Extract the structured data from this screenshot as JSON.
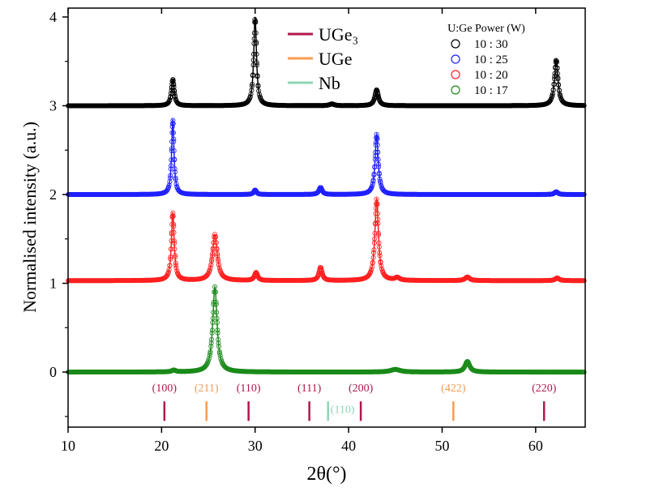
{
  "chart_data": {
    "type": "line",
    "xlabel": "2θ(°)",
    "ylabel": "Normalised intensity (a.u.)",
    "xlim": [
      10,
      65.3
    ],
    "ylim": [
      -0.62,
      4.1
    ],
    "xticks": [
      10,
      20,
      30,
      40,
      50,
      60
    ],
    "yticks": [
      0,
      1,
      2,
      3,
      4
    ],
    "grid": false,
    "marker": "open-circle",
    "legend_title": "U:Ge Power (W)",
    "legend_placement": "top-right",
    "series": [
      {
        "name": "10 : 30",
        "color": "#000000",
        "baseline": 3.0,
        "peaks": [
          [
            21.2,
            0.3,
            0.35
          ],
          [
            30.0,
            1.0,
            0.35
          ],
          [
            38.2,
            0.02,
            0.6
          ],
          [
            43.0,
            0.18,
            0.45
          ],
          [
            62.2,
            0.52,
            0.45
          ]
        ]
      },
      {
        "name": "10 : 25",
        "color": "#1f1fff",
        "baseline": 2.0,
        "peaks": [
          [
            21.2,
            0.85,
            0.3
          ],
          [
            30.0,
            0.05,
            0.35
          ],
          [
            37.0,
            0.08,
            0.4
          ],
          [
            43.0,
            0.68,
            0.4
          ],
          [
            62.2,
            0.03,
            0.45
          ]
        ]
      },
      {
        "name": "10 : 20",
        "color": "#ff1f1f",
        "baseline": 1.03,
        "peaks": [
          [
            21.2,
            0.77,
            0.35
          ],
          [
            25.7,
            0.52,
            0.6
          ],
          [
            30.1,
            0.09,
            0.4
          ],
          [
            37.0,
            0.15,
            0.4
          ],
          [
            43.0,
            0.92,
            0.45
          ],
          [
            45.2,
            0.03,
            0.6
          ],
          [
            52.7,
            0.04,
            0.6
          ],
          [
            62.3,
            0.03,
            0.5
          ]
        ]
      },
      {
        "name": "10 : 17",
        "color": "#1a8a1a",
        "baseline": 0.0,
        "peaks": [
          [
            21.3,
            0.02,
            0.5
          ],
          [
            25.7,
            0.96,
            0.55
          ],
          [
            45.0,
            0.03,
            1.2
          ],
          [
            52.7,
            0.12,
            0.6
          ]
        ]
      }
    ],
    "reference_phases": [
      {
        "name": "UGe₃",
        "color": "#b0184a"
      },
      {
        "name": "UGe",
        "color": "#f99b4f"
      },
      {
        "name": "Nb",
        "color": "#8fd4b4"
      }
    ],
    "reflections": [
      {
        "phase": "UGe₃",
        "hkl": "(100)",
        "x": 20.3
      },
      {
        "phase": "UGe",
        "hkl": "(211)",
        "x": 24.8
      },
      {
        "phase": "UGe₃",
        "hkl": "(110)",
        "x": 29.3
      },
      {
        "phase": "UGe₃",
        "hkl": "(111)",
        "x": 35.8
      },
      {
        "phase": "Nb",
        "hkl": "(110)",
        "x": 37.8
      },
      {
        "phase": "UGe₃",
        "hkl": "(200)",
        "x": 41.3
      },
      {
        "phase": "UGe",
        "hkl": "(422)",
        "x": 51.2
      },
      {
        "phase": "UGe₃",
        "hkl": "(220)",
        "x": 60.9
      }
    ]
  }
}
